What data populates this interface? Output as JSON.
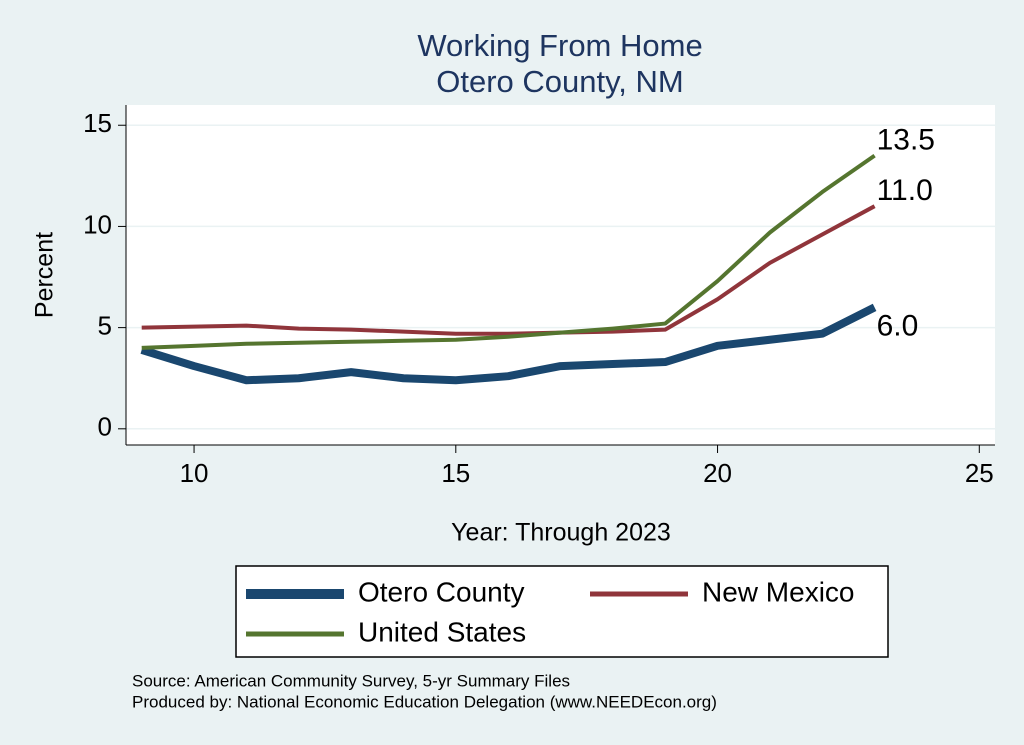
{
  "chart_data": {
    "type": "line",
    "title": [
      "Working From Home",
      "Otero County, NM"
    ],
    "x_label": "Year: Through 2023",
    "y_label": "Percent",
    "x": [
      9,
      10,
      11,
      12,
      13,
      14,
      15,
      16,
      17,
      18,
      19,
      20,
      21,
      22,
      23
    ],
    "series": [
      {
        "name": "Otero County",
        "color": "#1a476f",
        "values": [
          3.9,
          3.1,
          2.4,
          2.5,
          2.8,
          2.5,
          2.4,
          2.6,
          3.1,
          3.2,
          3.3,
          4.1,
          4.4,
          4.7,
          6.0
        ],
        "value_labels": [
          null,
          null,
          null,
          null,
          null,
          null,
          null,
          null,
          null,
          null,
          null,
          null,
          null,
          null,
          "6.0"
        ]
      },
      {
        "name": "New Mexico",
        "color": "#90353b",
        "values": [
          5.0,
          5.05,
          5.1,
          4.95,
          4.9,
          4.8,
          4.7,
          4.7,
          4.75,
          4.8,
          4.9,
          6.4,
          8.2,
          9.6,
          11.0
        ],
        "value_labels": [
          null,
          null,
          null,
          null,
          null,
          null,
          null,
          null,
          null,
          null,
          null,
          null,
          null,
          null,
          "11.0"
        ]
      },
      {
        "name": "United States",
        "color": "#55752f",
        "values": [
          4.0,
          4.1,
          4.2,
          4.25,
          4.3,
          4.35,
          4.4,
          4.55,
          4.75,
          4.95,
          5.2,
          7.3,
          9.7,
          11.7,
          13.5
        ],
        "value_labels": [
          null,
          null,
          null,
          null,
          null,
          null,
          null,
          null,
          null,
          null,
          null,
          null,
          null,
          null,
          "13.5"
        ]
      }
    ],
    "xlim": [
      8.7,
      25.3
    ],
    "xticks": [
      10,
      15,
      20,
      25
    ],
    "ylim": [
      -0.8,
      16
    ],
    "yticks": [
      0,
      5,
      10,
      15
    ],
    "grid": true,
    "notes": [
      "Source: American Community Survey, 5-yr Summary Files",
      "Produced by: National Economic Education Delegation (www.NEEDEcon.org)"
    ]
  }
}
